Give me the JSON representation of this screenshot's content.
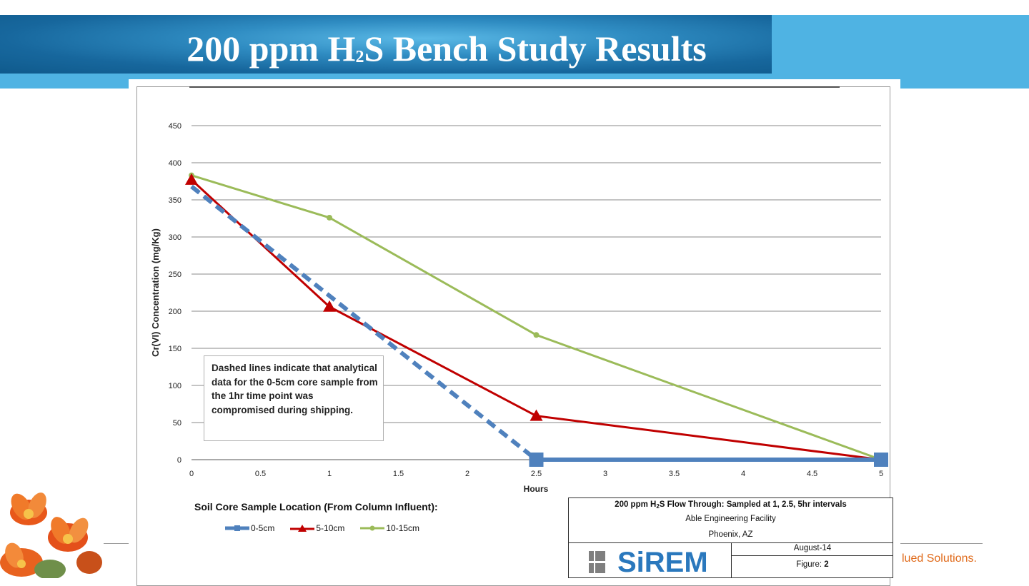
{
  "slide": {
    "title_pre": "200 ppm H",
    "title_sub": "2",
    "title_post": "S Bench Study Results",
    "tagline": "lued Solutions."
  },
  "note": "Dashed lines indicate that analytical data for the 0-5cm core sample from the 1hr time point was compromised  during shipping.",
  "legend": {
    "title": "Soil Core Sample Location (From Column Influent):",
    "items": [
      "0-5cm",
      "5-10cm",
      "10-15cm"
    ]
  },
  "title_block": {
    "line1_pre": "200 ppm H",
    "line1_sub": "2",
    "line1_post": "S Flow Through: Sampled at 1, 2.5, 5hr intervals",
    "line2": "Able Engineering Facility",
    "line3": "Phoenix, AZ",
    "date": "August-14",
    "figure_label": "Figure: ",
    "figure_number": "2",
    "logo_text": "SiREM"
  },
  "colors": {
    "banner_dark": "#17679d",
    "banner_light": "#4fb3e3",
    "series_0_5": "#4f81bd",
    "series_5_10": "#c00000",
    "series_10_15": "#9bbb59",
    "tagline": "#e06a1a"
  },
  "chart_data": {
    "type": "line",
    "title": "",
    "xlabel": "Hours",
    "ylabel": "Cr(VI) Concentration (mg/Kg)",
    "xlim": [
      0,
      5
    ],
    "ylim": [
      0,
      450
    ],
    "xticks": [
      0,
      0.5,
      1,
      1.5,
      2,
      2.5,
      3,
      3.5,
      4,
      4.5,
      5
    ],
    "yticks": [
      0,
      50,
      100,
      150,
      200,
      250,
      300,
      350,
      400,
      450
    ],
    "grid": true,
    "series": [
      {
        "name": "0-5cm",
        "marker": "square",
        "x": [
          0,
          2.5,
          5
        ],
        "values": [
          368,
          0,
          0
        ],
        "dashed_segments": [
          [
            0,
            2.5
          ]
        ]
      },
      {
        "name": "5-10cm",
        "marker": "triangle",
        "x": [
          0,
          1,
          2.5,
          5
        ],
        "values": [
          377,
          206,
          59,
          0
        ]
      },
      {
        "name": "10-15cm",
        "marker": "circle",
        "x": [
          0,
          1,
          2.5,
          5
        ],
        "values": [
          383,
          326,
          168,
          0
        ]
      }
    ]
  }
}
